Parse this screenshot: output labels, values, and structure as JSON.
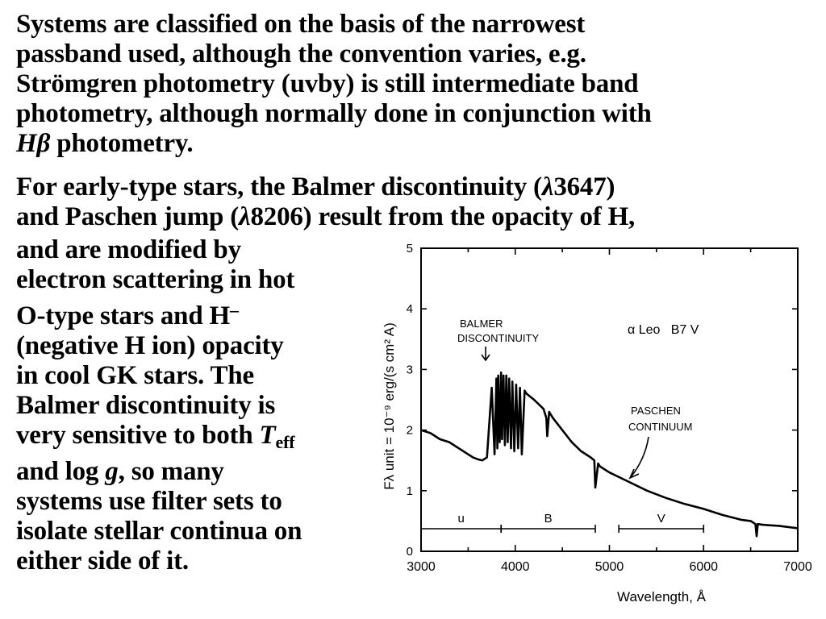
{
  "text": {
    "para1": [
      "Systems are classified on the basis of the narrowest",
      "passband used, although the convention varies, e.g.",
      "Strömgren photometry (uvby) is still intermediate band",
      "photometry, although normally done in conjunction with"
    ],
    "para1_last_symbol": "Hβ",
    "para1_last_rest": " photometry.",
    "para2_l1_a": "For early-type stars, the Balmer discontinuity (",
    "para2_l1_lambda": "λ",
    "para2_l1_b": "3647)",
    "para2_l2_a": "and Paschen jump (",
    "para2_l2_lambda": "λ",
    "para2_l2_b": "8206) result from the opacity of H,",
    "para2_l3": "and are modified by",
    "para2_l4": "electron scattering in hot",
    "para2_l5_a": "O-type stars and H",
    "para2_l5_sup": "–",
    "para2_l6": "(negative H ion) opacity",
    "para2_l7": "in cool GK stars. The",
    "para2_l8": "Balmer discontinuity is",
    "para2_l9_a": "very sensitive to both ",
    "para2_l9_T": "T",
    "para2_l9_sub": "eff",
    "para2_l10_a": "and log ",
    "para2_l10_g": "g",
    "para2_l10_b": ", so many",
    "para2_l11": "systems use filter sets to",
    "para2_l12": "isolate stellar continua on",
    "para2_l13": "either side of it."
  },
  "chart_data": {
    "type": "line",
    "xlabel": "Wavelength, Å",
    "ylabel": "Fλ unit = 10⁻⁹ erg/(s cm² A)",
    "xlim": [
      3000,
      7000
    ],
    "ylim": [
      0,
      5
    ],
    "xticks": [
      3000,
      4000,
      5000,
      6000,
      7000
    ],
    "yticks": [
      0,
      1,
      2,
      3,
      4,
      5
    ],
    "annotations": {
      "star": "α Leo   B7 V",
      "balmer_l1": "BALMER",
      "balmer_l2": "DISCONTINUITY",
      "paschen_l1": "PASCHEN",
      "paschen_l2": "CONTINUUM"
    },
    "bands": [
      {
        "name": "u",
        "x0": 3000,
        "x1": 3850
      },
      {
        "name": "B",
        "x0": 3850,
        "x1": 4850
      },
      {
        "name": "V",
        "x0": 5100,
        "x1": 6000
      }
    ],
    "x": [
      3000,
      3100,
      3200,
      3300,
      3400,
      3500,
      3550,
      3600,
      3650,
      3700,
      3750,
      3780,
      3800,
      3810,
      3820,
      3835,
      3850,
      3860,
      3875,
      3890,
      3905,
      3920,
      3935,
      3955,
      3970,
      3990,
      4010,
      4030,
      4050,
      4070,
      4100,
      4120,
      4200,
      4300,
      4330,
      4340,
      4360,
      4400,
      4500,
      4600,
      4700,
      4800,
      4840,
      4850,
      4880,
      4900,
      5000,
      5200,
      5400,
      5600,
      5800,
      6000,
      6200,
      6400,
      6500,
      6550,
      6563,
      6575,
      6620,
      6700,
      6800,
      6900,
      7000
    ],
    "y": [
      2.0,
      1.95,
      1.85,
      1.8,
      1.7,
      1.6,
      1.55,
      1.52,
      1.5,
      1.55,
      2.7,
      1.6,
      2.85,
      1.7,
      2.9,
      1.8,
      2.95,
      1.85,
      2.9,
      1.75,
      2.9,
      1.8,
      2.85,
      1.7,
      2.8,
      1.65,
      2.75,
      1.7,
      2.7,
      1.6,
      2.65,
      2.6,
      2.5,
      2.35,
      2.2,
      1.9,
      2.3,
      2.2,
      2.0,
      1.8,
      1.65,
      1.55,
      1.5,
      1.05,
      1.45,
      1.4,
      1.3,
      1.15,
      1.0,
      0.88,
      0.78,
      0.7,
      0.6,
      0.52,
      0.5,
      0.45,
      0.25,
      0.45,
      0.44,
      0.43,
      0.42,
      0.4,
      0.38
    ]
  }
}
